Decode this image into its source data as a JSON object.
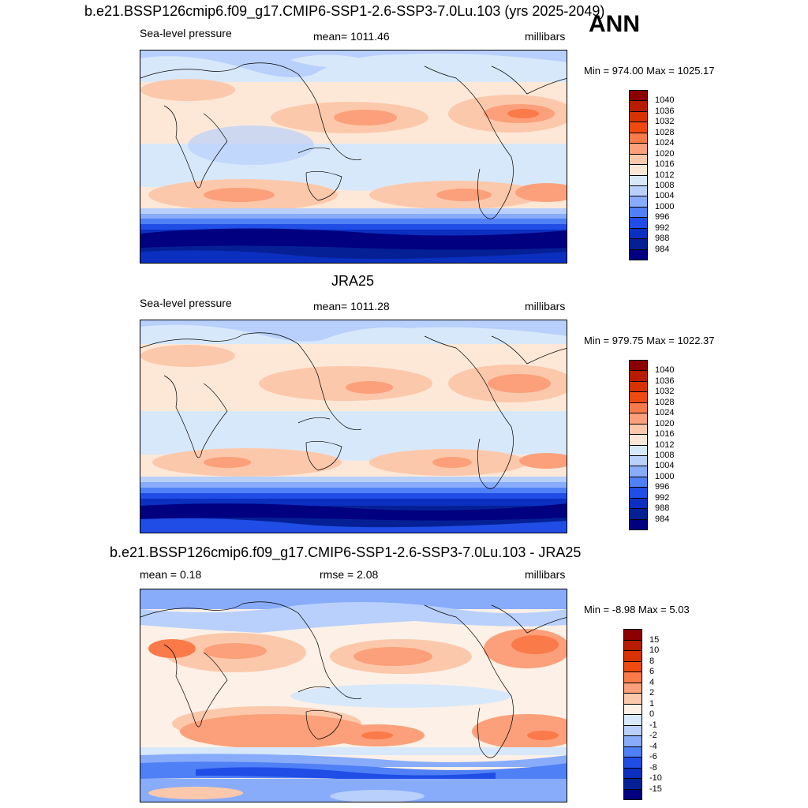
{
  "annual_label": "ANN",
  "panels": [
    {
      "title": "b.e21.BSSP126cmip6.f09_g17.CMIP6-SSP1-2.6-SSP3-7.0Lu.103 (yrs 2025-2049)",
      "left_label": "Sea-level pressure",
      "center_label": "mean= 1011.46",
      "units": "millibars",
      "minmax": "Min = 974.00 Max = 1025.17",
      "colorbar_labels": [
        "1040",
        "1036",
        "1032",
        "1028",
        "1024",
        "1020",
        "1016",
        "1012",
        "1008",
        "1004",
        "1000",
        "996",
        "992",
        "988",
        "984"
      ]
    },
    {
      "title": "JRA25",
      "left_label": "Sea-level pressure",
      "center_label": "mean= 1011.28",
      "units": "millibars",
      "minmax": "Min = 979.75 Max = 1022.37",
      "colorbar_labels": [
        "1040",
        "1036",
        "1032",
        "1028",
        "1024",
        "1020",
        "1016",
        "1012",
        "1008",
        "1004",
        "1000",
        "996",
        "992",
        "988",
        "984"
      ]
    },
    {
      "title": "b.e21.BSSP126cmip6.f09_g17.CMIP6-SSP1-2.6-SSP3-7.0Lu.103 - JRA25",
      "left_label": "mean =   0.18",
      "center_label": "rmse =   2.08",
      "units": "millibars",
      "minmax": "Min =  -8.98 Max =   5.03",
      "colorbar_labels": [
        "15",
        "10",
        "8",
        "6",
        "4",
        "2",
        "1",
        "0",
        "-1",
        "-2",
        "-4",
        "-6",
        "-8",
        "-10",
        "-15"
      ]
    }
  ],
  "colors": {
    "abs_scale": [
      "#8b0000",
      "#b71c00",
      "#d83200",
      "#f04a10",
      "#fb7a4a",
      "#fba07a",
      "#fcc8ab",
      "#fde8d8",
      "#d8e8fb",
      "#b8d0fb",
      "#88acfa",
      "#5080f5",
      "#1f4de6",
      "#0b2fbf",
      "#052094",
      "#000080"
    ],
    "diff_scale": [
      "#8b0000",
      "#b71c00",
      "#d83200",
      "#f04a10",
      "#fb7a4a",
      "#fba07a",
      "#fcc8ab",
      "#fdf0e6",
      "#d8e8fb",
      "#b8d0fb",
      "#88acfa",
      "#5080f5",
      "#1f4de6",
      "#0b2fbf",
      "#052094",
      "#000080"
    ]
  }
}
